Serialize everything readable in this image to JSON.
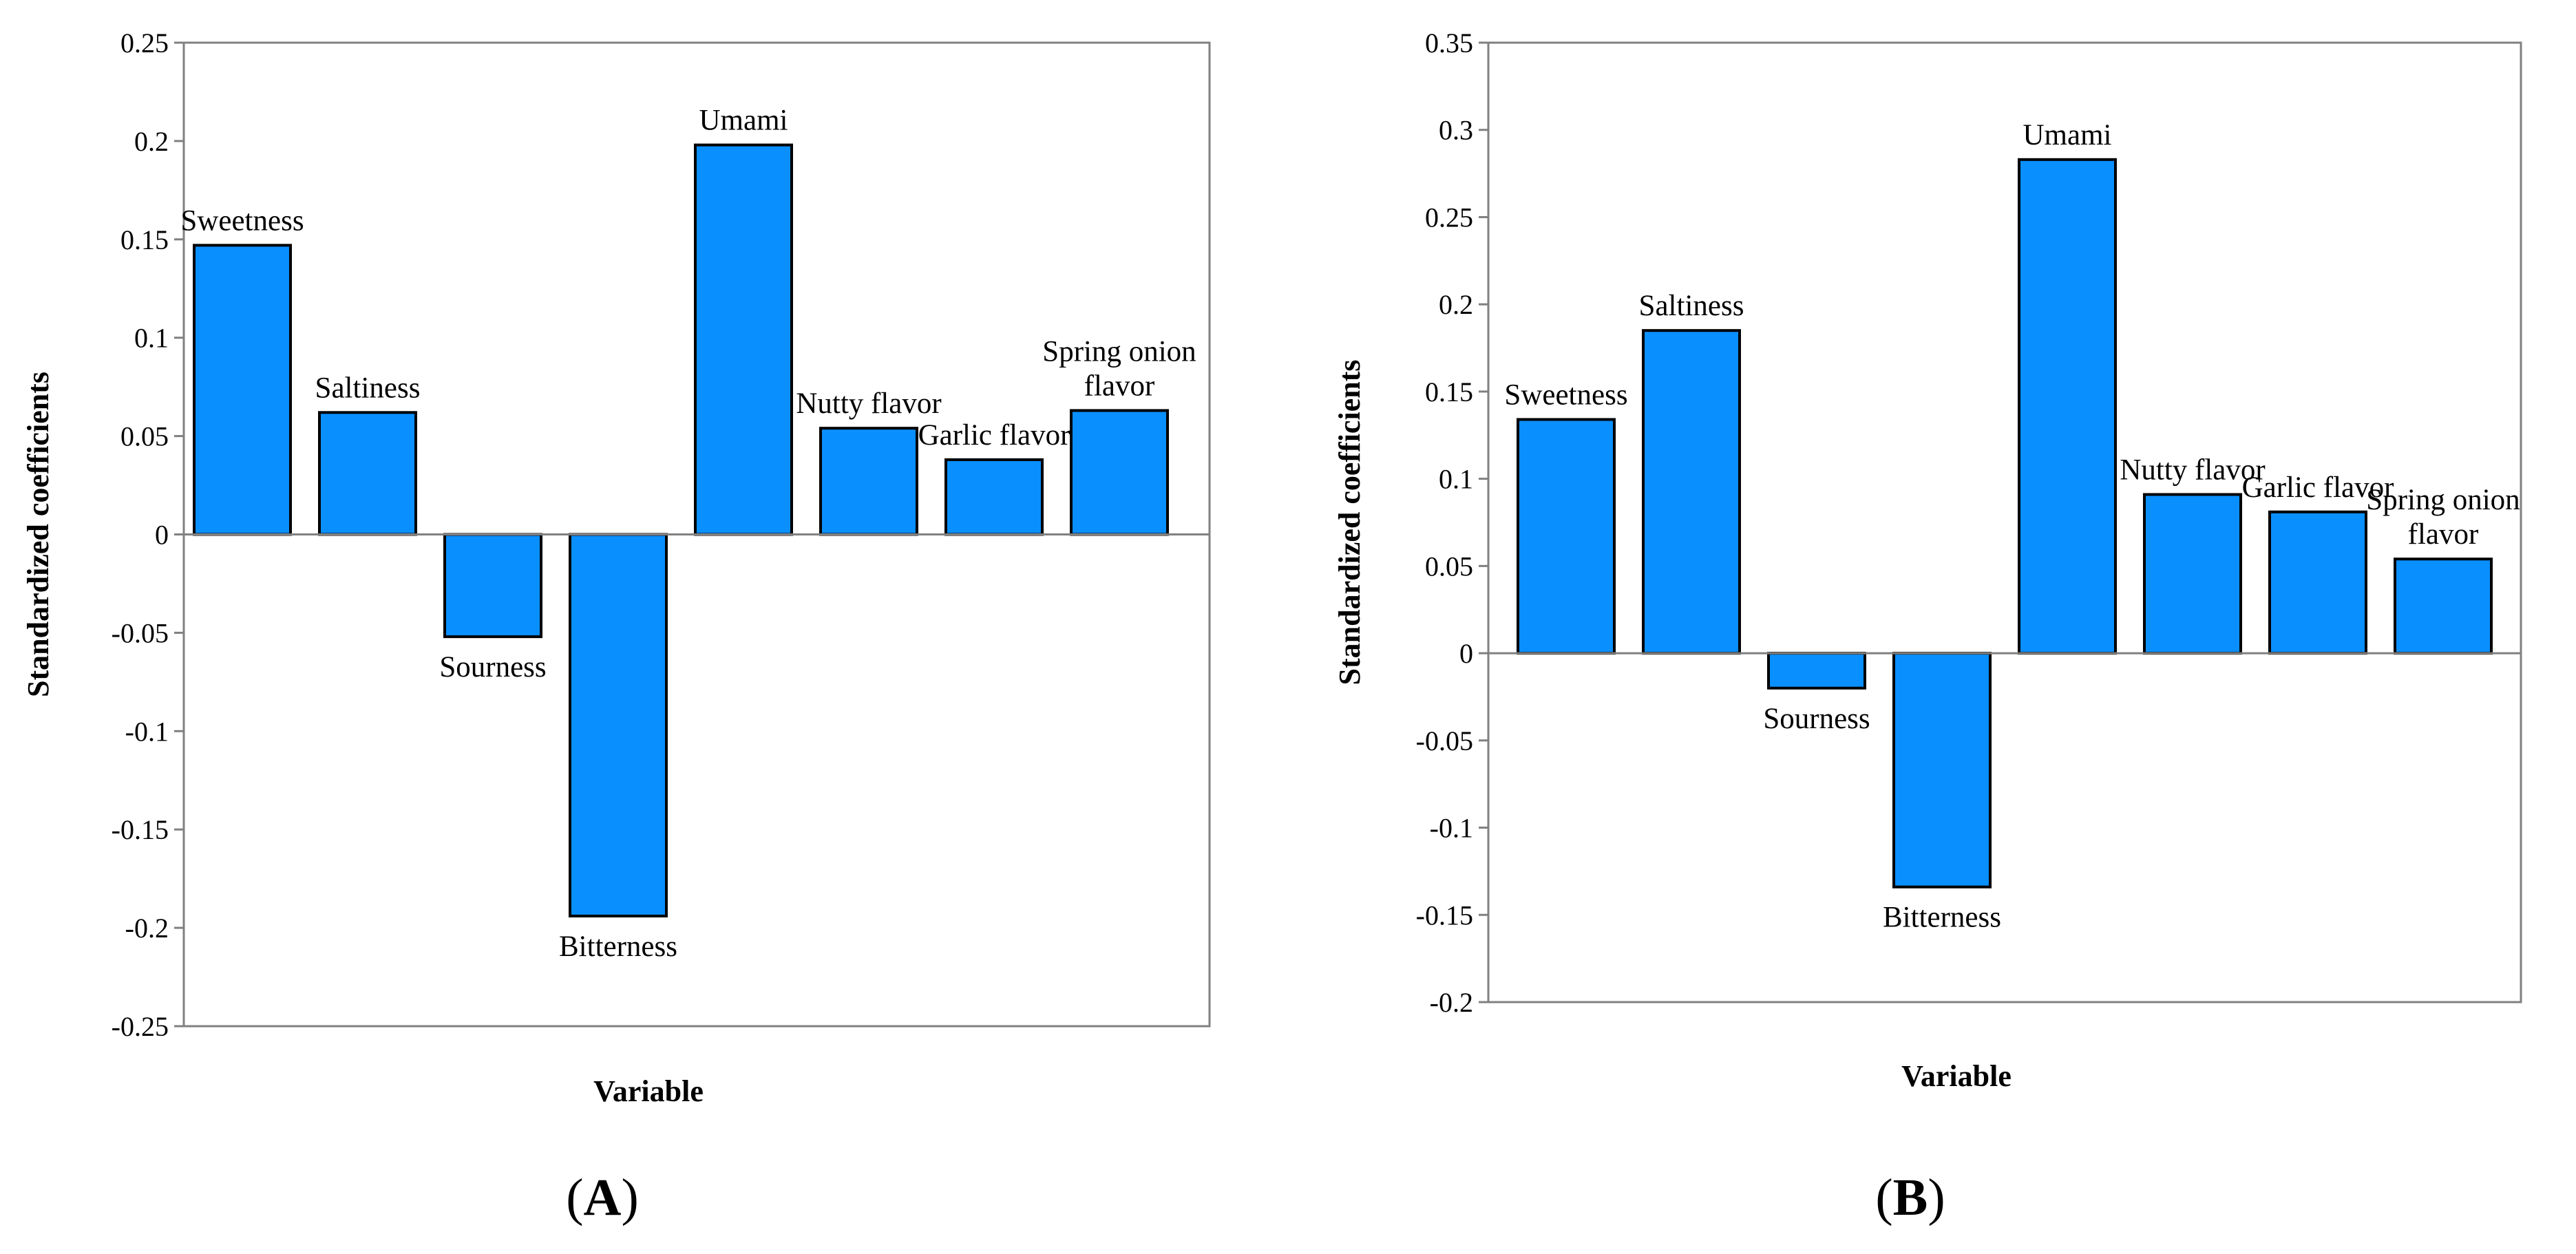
{
  "bar_color": "#0a8fff",
  "bar_stroke": "#000000",
  "chart_data": [
    {
      "type": "bar",
      "panel_label": "A",
      "categories": [
        "Sweetness",
        "Saltiness",
        "Sourness",
        "Bitterness",
        "Umami",
        "Nutty flavor",
        "Garlic flavor",
        "Spring onion flavor"
      ],
      "bar_labels": [
        [
          "Sweetness"
        ],
        [
          "Saltiness"
        ],
        [
          "Sourness"
        ],
        [
          "Bitterness"
        ],
        [
          "Umami"
        ],
        [
          "Nutty flavor"
        ],
        [
          "Garlic flavor"
        ],
        [
          "Spring onion",
          "flavor"
        ]
      ],
      "values": [
        0.147,
        0.062,
        -0.052,
        -0.194,
        0.198,
        0.054,
        0.038,
        0.063
      ],
      "xlabel": "Variable",
      "ylabel": "Standardized coefficients",
      "ylim": [
        -0.25,
        0.25
      ],
      "yticks": [
        "0.25",
        "0.2",
        "0.15",
        "0.1",
        "0.05",
        "0",
        "-0.05",
        "-0.1",
        "-0.15",
        "-0.2",
        "-0.25"
      ],
      "grid": false,
      "legend": "none"
    },
    {
      "type": "bar",
      "panel_label": "B",
      "categories": [
        "Sweetness",
        "Saltiness",
        "Sourness",
        "Bitterness",
        "Umami",
        "Nutty flavor",
        "Garlic flavor",
        "Spring onion flavor"
      ],
      "bar_labels": [
        [
          "Sweetness"
        ],
        [
          "Saltiness"
        ],
        [
          "Sourness"
        ],
        [
          "Bitterness"
        ],
        [
          "Umami"
        ],
        [
          "Nutty flavor"
        ],
        [
          "Garlic flavor"
        ],
        [
          "Spring onion",
          "flavor"
        ]
      ],
      "values": [
        0.134,
        0.185,
        -0.02,
        -0.134,
        0.283,
        0.091,
        0.081,
        0.054
      ],
      "xlabel": "Variable",
      "ylabel": "Standardized coefficients",
      "ylim": [
        -0.2,
        0.35
      ],
      "yticks": [
        "0.35",
        "0.3",
        "0.25",
        "0.2",
        "0.15",
        "0.1",
        "0.05",
        "0",
        "-0.05",
        "-0.1",
        "-0.15",
        "-0.2"
      ],
      "grid": false,
      "legend": "none"
    }
  ]
}
